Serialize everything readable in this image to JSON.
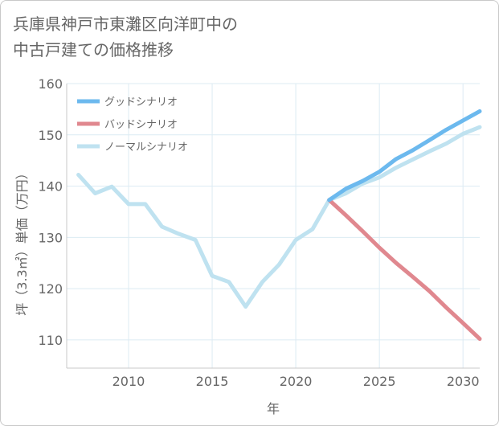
{
  "chart_data": {
    "type": "line",
    "title": "兵庫県神戸市東灘区向洋町中の\n中古戸建ての価格推移",
    "xlabel": "年",
    "ylabel": "坪（3.3㎡）単価（万円）",
    "xlim": [
      2006.3,
      2031
    ],
    "ylim": [
      104.5,
      160
    ],
    "xticks": [
      2010,
      2015,
      2020,
      2025,
      2030
    ],
    "yticks": [
      110,
      120,
      130,
      140,
      150,
      160
    ],
    "grid": true,
    "legend_position": "top-left",
    "series": [
      {
        "name": "グッドシナリオ",
        "color": "#6cb9ee",
        "x": [
          2022,
          2023,
          2024,
          2025,
          2026,
          2027,
          2028,
          2029,
          2030,
          2031
        ],
        "y": [
          137.3,
          139.5,
          141.0,
          142.8,
          145.3,
          147.0,
          149.0,
          151.0,
          152.8,
          154.6
        ]
      },
      {
        "name": "バッドシナリオ",
        "color": "#e0888f",
        "x": [
          2022,
          2023,
          2024,
          2025,
          2026,
          2027,
          2028,
          2029,
          2030,
          2031
        ],
        "y": [
          137.3,
          134.3,
          131.2,
          128.0,
          125.0,
          122.3,
          119.5,
          116.3,
          113.3,
          110.2
        ]
      },
      {
        "name": "ノーマルシナリオ",
        "color": "#bfe2f0",
        "x": [
          2007,
          2008,
          2009,
          2010,
          2011,
          2012,
          2013,
          2014,
          2015,
          2016,
          2017,
          2018,
          2019,
          2020,
          2021,
          2022,
          2023,
          2024,
          2025,
          2026,
          2027,
          2028,
          2029,
          2030,
          2031
        ],
        "y": [
          142.2,
          138.6,
          139.9,
          136.5,
          136.5,
          132.1,
          130.7,
          129.5,
          122.5,
          121.3,
          116.5,
          121.3,
          124.7,
          129.5,
          131.6,
          137.3,
          138.6,
          140.5,
          141.7,
          143.6,
          145.2,
          146.8,
          148.3,
          150.2,
          151.5
        ]
      }
    ]
  }
}
